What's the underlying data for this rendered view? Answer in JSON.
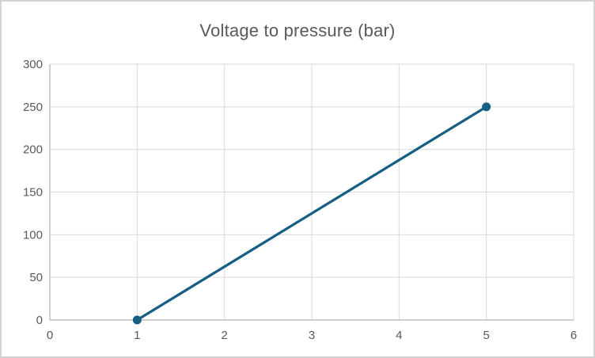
{
  "chart": {
    "title": "Voltage to pressure (bar)"
  },
  "chart_data": {
    "type": "line",
    "title": "Voltage to pressure (bar)",
    "series": [
      {
        "name": "Voltage to pressure (bar)",
        "x": [
          1,
          5
        ],
        "y": [
          0,
          250
        ]
      }
    ],
    "xlabel": "",
    "ylabel": "",
    "xlim": [
      0,
      6
    ],
    "ylim": [
      0,
      300
    ],
    "x_ticks": [
      0,
      1,
      2,
      3,
      4,
      5,
      6
    ],
    "y_ticks": [
      0,
      50,
      100,
      150,
      200,
      250,
      300
    ],
    "grid": true,
    "legend": "none",
    "marker": "circle",
    "colors": {
      "line": "#156082",
      "marker": "#156082",
      "gridline": "#d9d9d9",
      "axis_line": "#bfbfbf",
      "tick_text": "#595959",
      "title_text": "#595959",
      "background": "#ffffff",
      "frame_border": "#d3d3d3"
    }
  }
}
